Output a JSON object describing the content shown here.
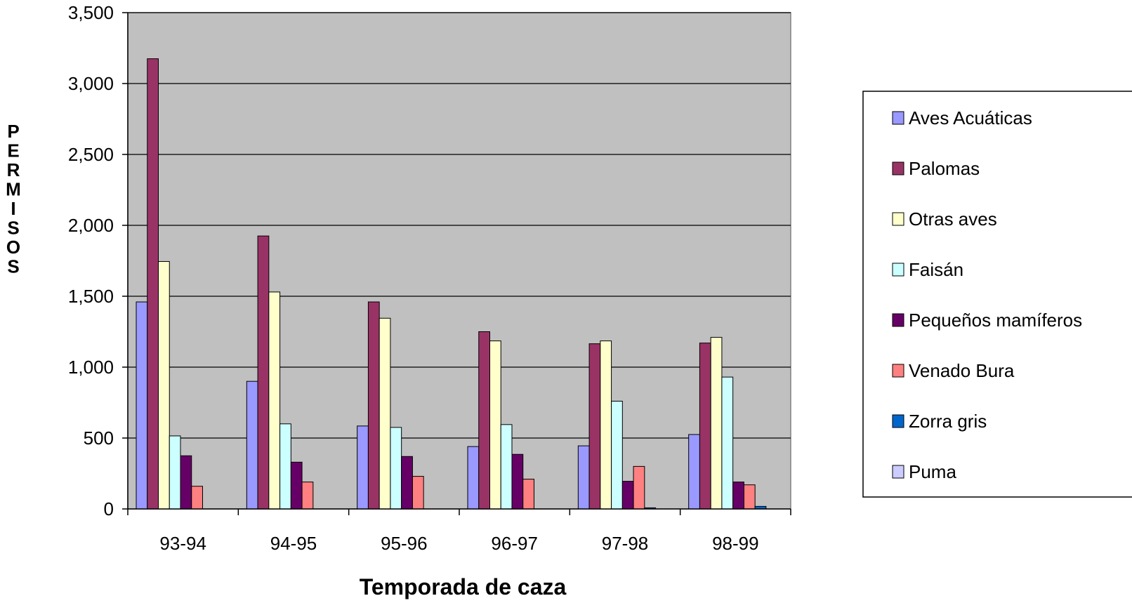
{
  "chart_data": {
    "type": "bar",
    "title": "",
    "xlabel": "Temporada de caza",
    "ylabel": "PERMISOS",
    "categories": [
      "93-94",
      "94-95",
      "95-96",
      "96-97",
      "97-98",
      "98-99"
    ],
    "ylim": [
      0,
      3500
    ],
    "yticks": [
      0,
      500,
      1000,
      1500,
      2000,
      2500,
      3000,
      3500
    ],
    "ytick_labels": [
      "0",
      "500",
      "1,000",
      "1,500",
      "2,000",
      "2,500",
      "3,000",
      "3,500"
    ],
    "grid": true,
    "plot_background": "#c0c0c0",
    "legend_position": "right",
    "series": [
      {
        "name": "Aves Acuáticas",
        "color": "#9999ff",
        "values": [
          1460,
          900,
          585,
          440,
          445,
          525
        ]
      },
      {
        "name": "Palomas",
        "color": "#993366",
        "values": [
          3175,
          1925,
          1460,
          1250,
          1165,
          1170
        ]
      },
      {
        "name": "Otras aves",
        "color": "#ffffcc",
        "values": [
          1745,
          1530,
          1345,
          1185,
          1185,
          1210
        ]
      },
      {
        "name": "Faisán",
        "color": "#ccffff",
        "values": [
          515,
          600,
          575,
          595,
          760,
          930
        ]
      },
      {
        "name": "Pequeños mamíferos",
        "color": "#660066",
        "values": [
          375,
          330,
          370,
          385,
          195,
          190
        ]
      },
      {
        "name": "Venado Bura",
        "color": "#ff8080",
        "values": [
          160,
          190,
          230,
          210,
          300,
          170
        ]
      },
      {
        "name": "Zorra gris",
        "color": "#0066cc",
        "values": [
          0,
          0,
          0,
          0,
          8,
          18
        ]
      },
      {
        "name": "Puma",
        "color": "#ccccff",
        "values": [
          0,
          0,
          0,
          0,
          0,
          0
        ]
      }
    ]
  }
}
